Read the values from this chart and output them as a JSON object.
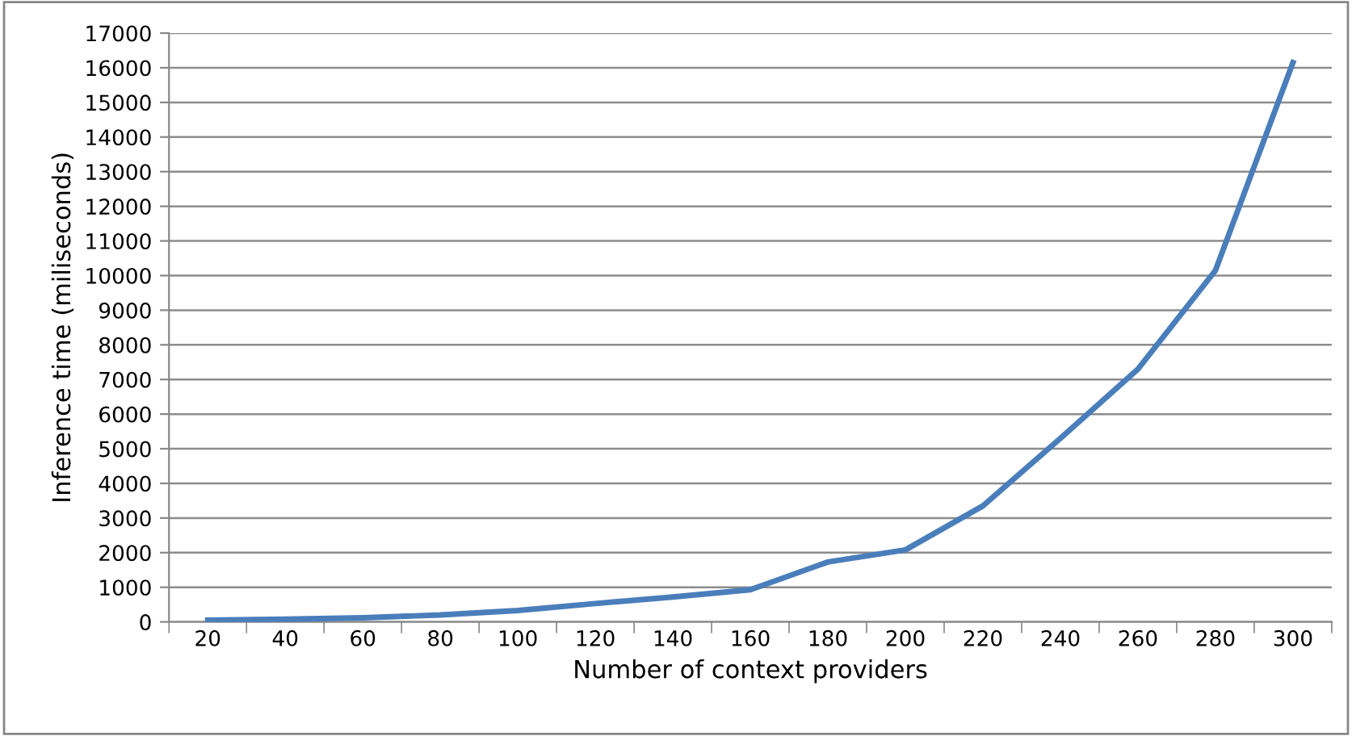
{
  "chart_data": {
    "type": "line",
    "xlabel": "Number of context providers",
    "ylabel": "Inference time (miliseconds)",
    "categories": [
      "20",
      "40",
      "60",
      "80",
      "100",
      "120",
      "140",
      "160",
      "180",
      "200",
      "220",
      "240",
      "260",
      "280",
      "300"
    ],
    "series": [
      {
        "color": "#4a7ebb",
        "values": [
          50,
          80,
          120,
          200,
          330,
          530,
          720,
          930,
          1730,
          2080,
          3350,
          5300,
          7300,
          10150,
          16150
        ]
      }
    ],
    "ylim": [
      0,
      17000
    ],
    "yticks": [
      0,
      1000,
      2000,
      3000,
      4000,
      5000,
      6000,
      7000,
      8000,
      9000,
      10000,
      11000,
      12000,
      13000,
      14000,
      15000,
      16000,
      17000
    ],
    "grid": "y",
    "legend": false,
    "marker": "none",
    "line_style": "solid"
  }
}
